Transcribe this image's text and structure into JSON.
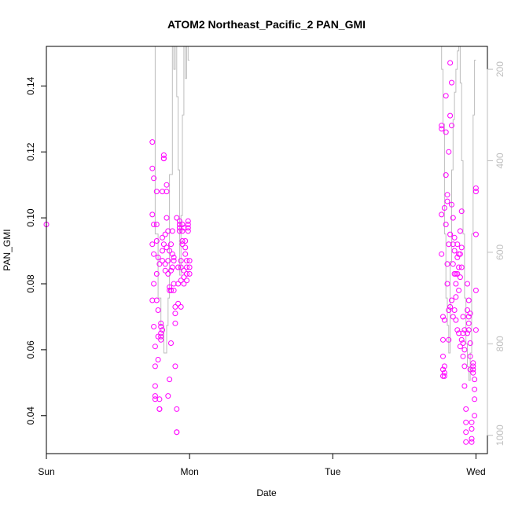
{
  "chart_data": {
    "type": "scatter",
    "title": "ATOM2 Northeast_Pacific_2 PAN_GMI",
    "xlabel": "Date",
    "ylabel": "PAN_GMI",
    "xlim": [
      0,
      3.08
    ],
    "ylim": [
      0.0285,
      0.152
    ],
    "x_ticks": [
      {
        "value": 0,
        "label": "Sun"
      },
      {
        "value": 1,
        "label": "Mon"
      },
      {
        "value": 2,
        "label": "Tue"
      },
      {
        "value": 3,
        "label": "Wed"
      }
    ],
    "y_ticks": [
      {
        "value": 0.04,
        "label": "0.04"
      },
      {
        "value": 0.06,
        "label": "0.06"
      },
      {
        "value": 0.08,
        "label": "0.08"
      },
      {
        "value": 0.1,
        "label": "0.10"
      },
      {
        "value": 0.12,
        "label": "0.12"
      },
      {
        "value": 0.14,
        "label": "0.14"
      }
    ],
    "y2_axis": {
      "label": "",
      "reversed": true,
      "ylim": [
        1040,
        150
      ],
      "ticks": [
        {
          "value": 200,
          "label": "200"
        },
        {
          "value": 400,
          "label": "400"
        },
        {
          "value": 600,
          "label": "600"
        },
        {
          "value": 800,
          "label": "800"
        },
        {
          "value": 1000,
          "label": "1000"
        }
      ],
      "color": "#bebebe"
    },
    "colors": {
      "points": "#ff00ff",
      "line": "#bebebe",
      "axis": "#000000"
    },
    "grid": false,
    "series": [
      {
        "type": "scatter",
        "x": [
          0.0,
          0.74,
          0.74,
          0.74,
          0.74,
          0.74,
          0.75,
          0.75,
          0.75,
          0.75,
          0.75,
          0.76,
          0.76,
          0.76,
          0.76,
          0.76,
          0.77,
          0.77,
          0.77,
          0.77,
          0.77,
          0.78,
          0.78,
          0.78,
          0.78,
          0.79,
          0.79,
          0.79,
          0.79,
          0.8,
          0.8,
          0.8,
          0.8,
          0.8,
          0.81,
          0.81,
          0.81,
          0.81,
          0.81,
          0.82,
          0.82,
          0.82,
          0.82,
          0.83,
          0.83,
          0.83,
          0.84,
          0.84,
          0.84,
          0.84,
          0.85,
          0.85,
          0.85,
          0.85,
          0.86,
          0.86,
          0.86,
          0.86,
          0.87,
          0.87,
          0.87,
          0.87,
          0.88,
          0.88,
          0.88,
          0.89,
          0.89,
          0.89,
          0.89,
          0.9,
          0.9,
          0.9,
          0.9,
          0.91,
          0.91,
          0.91,
          0.91,
          0.92,
          0.92,
          0.92,
          0.93,
          0.93,
          0.93,
          0.93,
          0.94,
          0.94,
          0.94,
          0.94,
          0.95,
          0.95,
          0.95,
          0.95,
          0.96,
          0.96,
          0.96,
          0.96,
          0.97,
          0.97,
          0.97,
          0.98,
          0.98,
          0.98,
          0.98,
          0.99,
          0.99,
          0.99,
          0.99,
          1.0,
          1.0,
          1.0,
          2.76,
          2.76,
          2.76,
          2.76,
          2.77,
          2.77,
          2.77,
          2.77,
          2.77,
          2.78,
          2.78,
          2.78,
          2.78,
          2.78,
          2.79,
          2.79,
          2.79,
          2.79,
          2.8,
          2.8,
          2.8,
          2.8,
          2.81,
          2.81,
          2.81,
          2.81,
          2.82,
          2.82,
          2.82,
          2.82,
          2.83,
          2.83,
          2.83,
          2.83,
          2.84,
          2.84,
          2.84,
          2.84,
          2.85,
          2.85,
          2.85,
          2.85,
          2.86,
          2.86,
          2.86,
          2.86,
          2.87,
          2.87,
          2.87,
          2.87,
          2.88,
          2.88,
          2.88,
          2.88,
          2.89,
          2.89,
          2.89,
          2.89,
          2.9,
          2.9,
          2.9,
          2.9,
          2.91,
          2.91,
          2.91,
          2.91,
          2.92,
          2.92,
          2.92,
          2.92,
          2.93,
          2.93,
          2.93,
          2.93,
          2.94,
          2.94,
          2.94,
          2.95,
          2.95,
          2.95,
          2.95,
          2.96,
          2.96,
          2.96,
          2.96,
          2.97,
          2.97,
          2.97,
          2.97,
          2.98,
          2.98,
          2.98,
          2.98,
          2.99,
          2.99,
          2.99,
          2.99,
          3.0,
          3.0,
          3.0,
          3.0,
          3.0
        ],
        "y": [
          0.098,
          0.123,
          0.115,
          0.101,
          0.092,
          0.075,
          0.112,
          0.098,
          0.089,
          0.08,
          0.067,
          0.061,
          0.055,
          0.049,
          0.046,
          0.045,
          0.093,
          0.108,
          0.098,
          0.083,
          0.075,
          0.088,
          0.072,
          0.064,
          0.057,
          0.086,
          0.045,
          0.042,
          0.042,
          0.063,
          0.065,
          0.067,
          0.068,
          0.064,
          0.108,
          0.094,
          0.09,
          0.087,
          0.066,
          0.118,
          0.119,
          0.118,
          0.092,
          0.086,
          0.084,
          0.095,
          0.091,
          0.11,
          0.108,
          0.1,
          0.087,
          0.083,
          0.046,
          0.096,
          0.079,
          0.078,
          0.09,
          0.051,
          0.062,
          0.092,
          0.084,
          0.078,
          0.096,
          0.089,
          0.085,
          0.088,
          0.087,
          0.078,
          0.08,
          0.073,
          0.071,
          0.068,
          0.055,
          0.042,
          0.035,
          0.035,
          0.1,
          0.08,
          0.085,
          0.074,
          0.099,
          0.097,
          0.098,
          0.096,
          0.087,
          0.085,
          0.081,
          0.073,
          0.098,
          0.096,
          0.093,
          0.092,
          0.097,
          0.084,
          0.082,
          0.08,
          0.091,
          0.093,
          0.089,
          0.087,
          0.085,
          0.083,
          0.081,
          0.099,
          0.098,
          0.097,
          0.096,
          0.087,
          0.085,
          0.083,
          0.128,
          0.127,
          0.101,
          0.089,
          0.07,
          0.063,
          0.058,
          0.054,
          0.052,
          0.103,
          0.069,
          0.055,
          0.052,
          0.053,
          0.137,
          0.126,
          0.113,
          0.098,
          0.107,
          0.105,
          0.086,
          0.08,
          0.12,
          0.092,
          0.072,
          0.063,
          0.147,
          0.131,
          0.095,
          0.073,
          0.141,
          0.128,
          0.104,
          0.075,
          0.1,
          0.092,
          0.086,
          0.07,
          0.094,
          0.09,
          0.083,
          0.072,
          0.083,
          0.08,
          0.076,
          0.069,
          0.092,
          0.088,
          0.083,
          0.066,
          0.089,
          0.085,
          0.078,
          0.065,
          0.096,
          0.089,
          0.082,
          0.061,
          0.102,
          0.091,
          0.085,
          0.063,
          0.07,
          0.065,
          0.062,
          0.058,
          0.066,
          0.06,
          0.055,
          0.049,
          0.042,
          0.038,
          0.035,
          0.032,
          0.08,
          0.072,
          0.065,
          0.075,
          0.07,
          0.068,
          0.066,
          0.071,
          0.062,
          0.058,
          0.054,
          0.038,
          0.036,
          0.033,
          0.032,
          0.056,
          0.055,
          0.054,
          0.053,
          0.051,
          0.048,
          0.045,
          0.04,
          0.109,
          0.108,
          0.095,
          0.078,
          0.066
        ]
      },
      {
        "type": "line",
        "name": "",
        "x": [
          0.74,
          0.76,
          0.76,
          0.78,
          0.78,
          0.8,
          0.8,
          0.82,
          0.82,
          0.84,
          0.84,
          0.85,
          0.85,
          0.86,
          0.86,
          0.88,
          0.88,
          0.89,
          0.89,
          0.9,
          0.9,
          0.91,
          0.91,
          0.92,
          0.92,
          0.93,
          0.93,
          0.94,
          0.94,
          0.95,
          0.95,
          0.96,
          0.96,
          0.97,
          0.97,
          0.98,
          0.98,
          0.99,
          0.99,
          1.0,
          2.74,
          2.76,
          2.76,
          2.77,
          2.77,
          2.78,
          2.78,
          2.79,
          2.79,
          2.8,
          2.8,
          2.81,
          2.81,
          2.82,
          2.82,
          2.83,
          2.83,
          2.84,
          2.84,
          2.85,
          2.85,
          2.86,
          2.86,
          2.87,
          2.87,
          2.88,
          2.88,
          2.89,
          2.89,
          2.9,
          2.9,
          2.91,
          2.91,
          2.92,
          2.92,
          2.93,
          2.93,
          2.94,
          2.94,
          2.95,
          2.95,
          2.96,
          2.96,
          2.97,
          2.97,
          2.98,
          2.98,
          2.99,
          2.99,
          3.0
        ],
        "y2": [
          150,
          150,
          560,
          560,
          700,
          700,
          760,
          760,
          820,
          820,
          760,
          760,
          700,
          700,
          430,
          430,
          150,
          150,
          200,
          200,
          150,
          150,
          260,
          260,
          420,
          420,
          650,
          650,
          520,
          520,
          300,
          300,
          150,
          150,
          220,
          220,
          150,
          150,
          180,
          180,
          150,
          150,
          200,
          200,
          320,
          320,
          560,
          560,
          700,
          700,
          760,
          760,
          820,
          820,
          620,
          620,
          420,
          420,
          310,
          310,
          250,
          250,
          200,
          200,
          160,
          160,
          150,
          150,
          230,
          230,
          400,
          400,
          560,
          560,
          700,
          700,
          800,
          800,
          850,
          850,
          880,
          880,
          820,
          820,
          560,
          560,
          300,
          300,
          180,
          180
        ]
      }
    ]
  }
}
